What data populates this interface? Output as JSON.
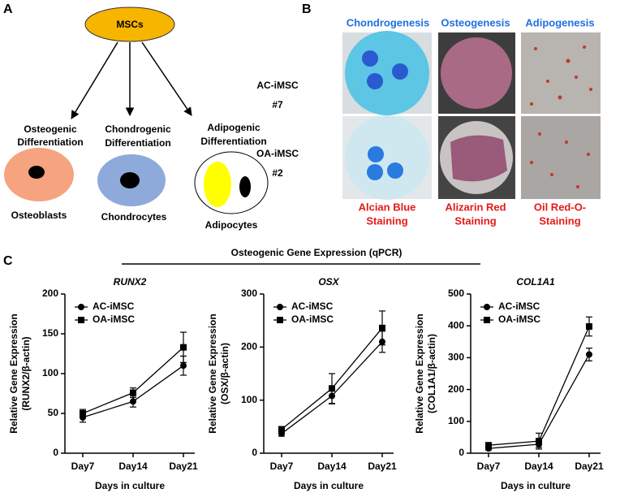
{
  "panel_a": {
    "label": "A",
    "root": "MSCs",
    "branches": [
      {
        "title": [
          "Osteogenic",
          "Differentiation"
        ],
        "cell": "Osteoblasts"
      },
      {
        "title": [
          "Chondrogenic",
          "Differentiation"
        ],
        "cell": "Chondrocytes"
      },
      {
        "title": [
          "Adipogenic",
          "Differentiation"
        ],
        "cell": "Adipocytes"
      }
    ]
  },
  "panel_b": {
    "label": "B",
    "columns": [
      "Chondrogenesis",
      "Osteogenesis",
      "Adipogenesis"
    ],
    "rows": [
      [
        "AC-iMSC",
        "#7"
      ],
      [
        "OA-iMSC",
        "#2"
      ]
    ],
    "stains": [
      [
        "Alcian Blue",
        "Staining"
      ],
      [
        "Alizarin Red",
        "Staining"
      ],
      [
        "Oil Red-O-",
        "Staining"
      ]
    ]
  },
  "panel_c": {
    "label": "C",
    "title": "Osteogenic Gene Expression (qPCR)"
  },
  "chart_data": [
    {
      "type": "line",
      "title": "RUNX2",
      "xlabel": "Days in culture",
      "ylabel": [
        "Relative Gene Expression",
        "(RUNX2/β-actin)"
      ],
      "categories": [
        "Day7",
        "Day14",
        "Day21"
      ],
      "ylim": [
        0,
        200
      ],
      "yticks": [
        0,
        50,
        100,
        150,
        200
      ],
      "legend": "upper left",
      "series": [
        {
          "name": "AC-iMSC",
          "color": "#000000",
          "marker": "circle",
          "values": [
            45,
            65,
            110
          ],
          "errors": [
            6,
            7,
            12
          ]
        },
        {
          "name": "OA-iMSC",
          "color": "#000000",
          "marker": "square",
          "values": [
            50,
            76,
            133
          ],
          "errors": [
            5,
            6,
            19
          ]
        }
      ]
    },
    {
      "type": "line",
      "title": "OSX",
      "xlabel": "Days in culture",
      "ylabel": [
        "Relative Gene Expression",
        "(OSX/β-actin)"
      ],
      "categories": [
        "Day7",
        "Day14",
        "Day21"
      ],
      "ylim": [
        0,
        300
      ],
      "yticks": [
        0,
        100,
        200,
        300
      ],
      "legend": "upper left",
      "series": [
        {
          "name": "AC-iMSC",
          "color": "#000000",
          "marker": "circle",
          "values": [
            37,
            108,
            210
          ],
          "errors": [
            5,
            15,
            20
          ]
        },
        {
          "name": "OA-iMSC",
          "color": "#000000",
          "marker": "square",
          "values": [
            45,
            122,
            236
          ],
          "errors": [
            5,
            28,
            32
          ]
        }
      ]
    },
    {
      "type": "line",
      "title": "COL1A1",
      "xlabel": "Days in culture",
      "ylabel": [
        "Relative Gene Expression",
        "(COL1A1/β-actin)"
      ],
      "categories": [
        "Day7",
        "Day14",
        "Day21"
      ],
      "ylim": [
        0,
        500
      ],
      "yticks": [
        0,
        100,
        200,
        300,
        400,
        500
      ],
      "legend": "upper left",
      "series": [
        {
          "name": "AC-iMSC",
          "color": "#000000",
          "marker": "circle",
          "values": [
            15,
            28,
            310
          ],
          "errors": [
            5,
            10,
            20
          ]
        },
        {
          "name": "OA-iMSC",
          "color": "#000000",
          "marker": "square",
          "values": [
            25,
            38,
            398
          ],
          "errors": [
            5,
            25,
            30
          ]
        }
      ]
    }
  ]
}
